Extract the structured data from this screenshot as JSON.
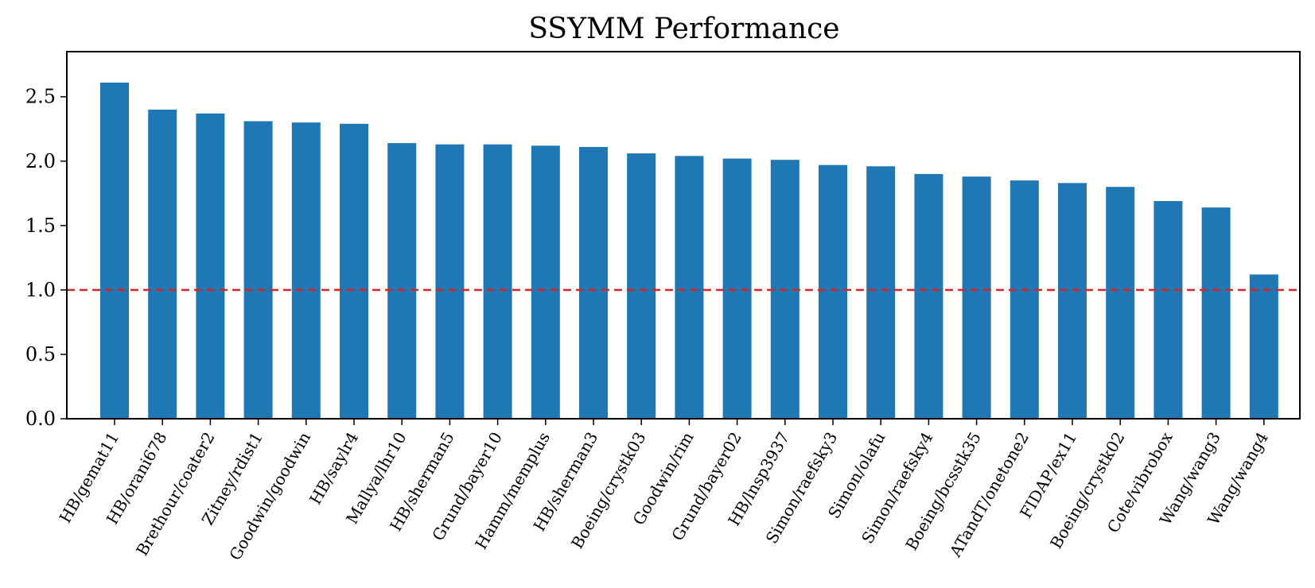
{
  "chart_data": {
    "type": "bar",
    "title": "SSYMM Performance",
    "xlabel": "",
    "ylabel": "",
    "categories": [
      "HB/gemat11",
      "HB/orani678",
      "Brethour/coater2",
      "Zitney/rdist1",
      "Goodwin/goodwin",
      "HB/saylr4",
      "Mallya/lhr10",
      "HB/sherman5",
      "Grund/bayer10",
      "Hamm/memplus",
      "HB/sherman3",
      "Boeing/crystk03",
      "Goodwin/rim",
      "Grund/bayer02",
      "HB/lnsp3937",
      "Simon/raefsky3",
      "Simon/olafu",
      "Simon/raefsky4",
      "Boeing/bcsstk35",
      "ATandT/onetone2",
      "FIDAP/ex11",
      "Boeing/crystk02",
      "Cote/vibrobox",
      "Wang/wang3",
      "Wang/wang4"
    ],
    "values": [
      2.61,
      2.4,
      2.37,
      2.31,
      2.3,
      2.29,
      2.14,
      2.13,
      2.13,
      2.12,
      2.11,
      2.06,
      2.04,
      2.02,
      2.01,
      1.97,
      1.96,
      1.9,
      1.88,
      1.85,
      1.83,
      1.8,
      1.69,
      1.64,
      1.12
    ],
    "ylim": [
      0,
      2.85
    ],
    "yticks": [
      "0.0",
      "0.5",
      "1.0",
      "1.5",
      "2.0",
      "2.5"
    ],
    "reference_line": {
      "y": 1.0,
      "style": "dashed",
      "color": "#d62728"
    },
    "bar_color": "#1f77b4",
    "grid": false,
    "legend": "none"
  }
}
